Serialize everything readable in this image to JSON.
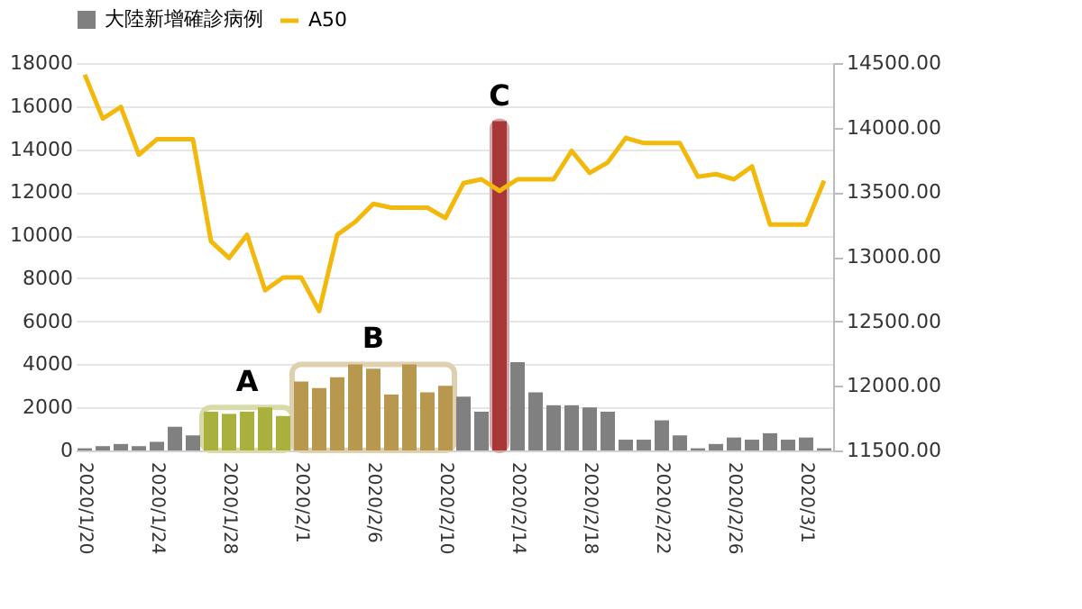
{
  "chart_data": {
    "type": "bar",
    "categories": [
      "2020/1/20",
      null,
      null,
      null,
      "2020/1/24",
      null,
      null,
      null,
      "2020/1/28",
      null,
      null,
      null,
      "2020/2/1",
      null,
      null,
      null,
      "2020/2/6",
      null,
      null,
      null,
      "2020/2/10",
      null,
      null,
      null,
      "2020/2/14",
      null,
      null,
      null,
      "2020/2/18",
      null,
      null,
      null,
      "2020/2/22",
      null,
      null,
      null,
      "2020/2/26",
      null,
      null,
      null,
      "2020/3/1",
      null
    ],
    "series": [
      {
        "name": "大陸新增確診病例",
        "color": "#808080",
        "values": [
          100,
          200,
          300,
          200,
          400,
          1100,
          700,
          1800,
          1700,
          1800,
          2000,
          1600,
          3200,
          2900,
          3400,
          4000,
          3800,
          2600,
          4000,
          2700,
          3000,
          2500,
          1800,
          15300,
          4100,
          2700,
          2100,
          2100,
          2000,
          1800,
          500,
          500,
          1400,
          700,
          100,
          300,
          600,
          500,
          800,
          500,
          600,
          100
        ],
        "colors": [
          "#808080",
          "#808080",
          "#808080",
          "#808080",
          "#808080",
          "#808080",
          "#808080",
          "#aab03c",
          "#aab03c",
          "#aab03c",
          "#aab03c",
          "#aab03c",
          "#b8974e",
          "#b8974e",
          "#b8974e",
          "#b8974e",
          "#b8974e",
          "#b8974e",
          "#b8974e",
          "#b8974e",
          "#b8974e",
          "#808080",
          "#808080",
          "#a83838",
          "#808080",
          "#808080",
          "#808080",
          "#808080",
          "#808080",
          "#808080",
          "#808080",
          "#808080",
          "#808080",
          "#808080",
          "#808080",
          "#808080",
          "#808080",
          "#808080",
          "#808080",
          "#808080",
          "#808080",
          "#808080"
        ]
      },
      {
        "name": "A50",
        "type": "line",
        "axis": "y2",
        "color": "#f2b90c",
        "values": [
          14410,
          14070,
          14160,
          13790,
          13910,
          13910,
          13910,
          13120,
          12990,
          13170,
          12740,
          12840,
          12840,
          12580,
          13170,
          13270,
          13410,
          13380,
          13380,
          13380,
          13300,
          13570,
          13600,
          13510,
          13600,
          13600,
          13600,
          13820,
          13650,
          13730,
          13920,
          13880,
          13880,
          13880,
          13620,
          13640,
          13600,
          13700,
          13250,
          13250,
          13250,
          13590
        ]
      }
    ],
    "ylim": [
      0,
      18000
    ],
    "yticks": [
      0,
      2000,
      4000,
      6000,
      8000,
      10000,
      12000,
      14000,
      16000,
      18000
    ],
    "y2lim": [
      11500,
      14500
    ],
    "y2ticks": [
      {
        "value": 11500,
        "label": "11500.00"
      },
      {
        "value": 12000,
        "label": "12000.00"
      },
      {
        "value": 12500,
        "label": "12500.00"
      },
      {
        "value": 13000,
        "label": "13000.00"
      },
      {
        "value": 13500,
        "label": "13500.00"
      },
      {
        "value": 14000,
        "label": "14000.00"
      },
      {
        "value": 14500,
        "label": "14500.00"
      }
    ],
    "annotations": [
      "A",
      "B",
      "C"
    ],
    "grid": "y",
    "legend": "top"
  }
}
